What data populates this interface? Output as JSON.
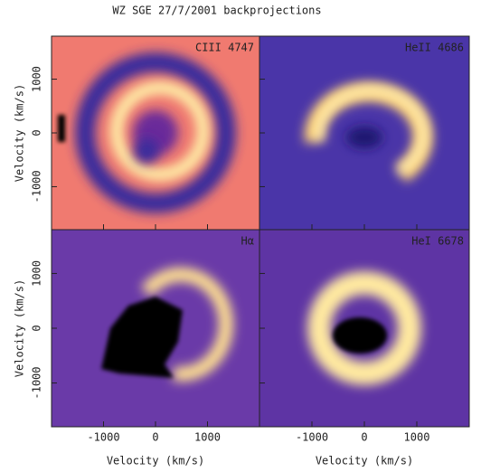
{
  "title": "WZ SGE 27/7/2001 backprojections",
  "chart_data": [
    {
      "type": "image",
      "label": "CIII 4747",
      "xlim": [
        -2000,
        2000
      ],
      "ylim": [
        -1800,
        1800
      ],
      "xticks": [
        -1000,
        0,
        1000
      ],
      "yticks": [
        -1000,
        0,
        1000
      ],
      "ylabel": "Velocity (km/s)"
    },
    {
      "type": "image",
      "label": "HeII 4686",
      "xlim": [
        -2000,
        2000
      ],
      "ylim": [
        -1800,
        1800
      ],
      "xticks": [
        -1000,
        0,
        1000
      ],
      "yticks": [
        -1000,
        0,
        1000
      ]
    },
    {
      "type": "image",
      "label": "Hα",
      "xlim": [
        -2000,
        2000
      ],
      "ylim": [
        -1800,
        1800
      ],
      "xticks": [
        -1000,
        0,
        1000
      ],
      "yticks": [
        -1000,
        0,
        1000
      ],
      "ylabel": "Velocity (km/s)",
      "xlabel": "Velocity (km/s)"
    },
    {
      "type": "image",
      "label": "HeI 6678",
      "xlim": [
        -2000,
        2000
      ],
      "ylim": [
        -1800,
        1800
      ],
      "xticks": [
        -1000,
        0,
        1000
      ],
      "yticks": [
        -1000,
        0,
        1000
      ],
      "xlabel": "Velocity (km/s)"
    }
  ]
}
